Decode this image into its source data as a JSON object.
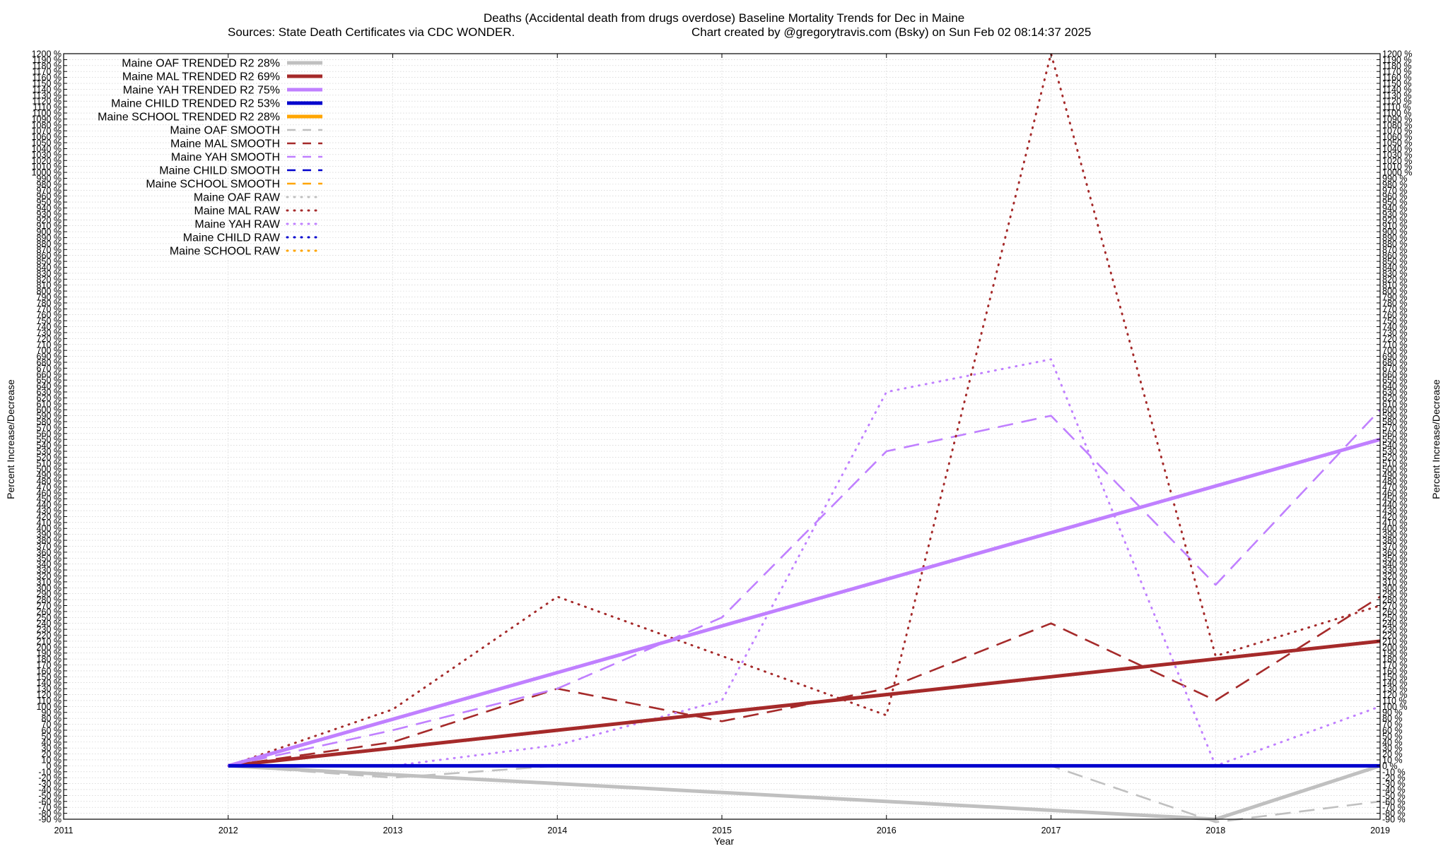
{
  "chart_data": {
    "type": "line",
    "title": "Deaths (Accidental death from drugs overdose)  Baseline Mortality Trends for Dec in Maine",
    "subtitle_left": "Sources: State Death Certificates via CDC WONDER.",
    "subtitle_right": "Chart created by @gregorytravis.com (Bsky) on Sun Feb 02 08:14:37 2025",
    "xlabel": "Year",
    "ylabel_left": "Percent Increase/Decrease",
    "ylabel_right": "Percent Increase/Decrease",
    "xlim": [
      2011,
      2019
    ],
    "ylim": [
      -90,
      1200
    ],
    "x_ticks": [
      2011,
      2012,
      2013,
      2014,
      2015,
      2016,
      2017,
      2018,
      2019
    ],
    "y_tick_step": 10,
    "y_tick_suffix": " %",
    "grid": true,
    "legend_position": "top-left",
    "colors": {
      "oaf": "#c0c0c0",
      "mal": "#a52a2a",
      "yah": "#c080ff",
      "child": "#0000cd",
      "school": "#ffa500",
      "grid": "#c8c8c8"
    },
    "series": [
      {
        "name": "Maine OAF TRENDED R2  28%",
        "group": "oaf",
        "style": "trended",
        "x": [
          2012,
          2018,
          2019
        ],
        "y": [
          0,
          -90,
          0
        ]
      },
      {
        "name": "Maine MAL TRENDED R2  69%",
        "group": "mal",
        "style": "trended",
        "x": [
          2012,
          2019
        ],
        "y": [
          0,
          210
        ]
      },
      {
        "name": "Maine YAH TRENDED R2  75%",
        "group": "yah",
        "style": "trended",
        "x": [
          2012,
          2019
        ],
        "y": [
          0,
          550
        ]
      },
      {
        "name": "Maine CHILD TRENDED R2  53%",
        "group": "child",
        "style": "trended",
        "x": [
          2012,
          2019
        ],
        "y": [
          0,
          0
        ]
      },
      {
        "name": "Maine SCHOOL TRENDED R2  28%",
        "group": "school",
        "style": "trended",
        "x": [],
        "y": []
      },
      {
        "name": "Maine OAF SMOOTH",
        "group": "oaf",
        "style": "smooth",
        "x": [
          2012,
          2013,
          2014,
          2015,
          2016,
          2017,
          2018,
          2019
        ],
        "y": [
          0,
          -20,
          0,
          0,
          0,
          0,
          -95,
          -60
        ]
      },
      {
        "name": "Maine MAL SMOOTH",
        "group": "mal",
        "style": "smooth",
        "x": [
          2012,
          2013,
          2014,
          2015,
          2016,
          2017,
          2018,
          2019
        ],
        "y": [
          0,
          40,
          130,
          75,
          130,
          240,
          110,
          285
        ]
      },
      {
        "name": "Maine YAH SMOOTH",
        "group": "yah",
        "style": "smooth",
        "x": [
          2012,
          2013,
          2014,
          2015,
          2016,
          2017,
          2018,
          2019
        ],
        "y": [
          0,
          60,
          130,
          250,
          530,
          590,
          305,
          600
        ]
      },
      {
        "name": "Maine CHILD SMOOTH",
        "group": "child",
        "style": "smooth",
        "x": [
          2012,
          2019
        ],
        "y": [
          0,
          0
        ]
      },
      {
        "name": "Maine SCHOOL SMOOTH",
        "group": "school",
        "style": "smooth",
        "x": [],
        "y": []
      },
      {
        "name": "Maine OAF RAW",
        "group": "oaf",
        "style": "raw",
        "x": [],
        "y": []
      },
      {
        "name": "Maine MAL RAW",
        "group": "mal",
        "style": "raw",
        "x": [
          2012,
          2013,
          2014,
          2015,
          2016,
          2017,
          2018,
          2019
        ],
        "y": [
          0,
          95,
          285,
          185,
          85,
          1200,
          185,
          270
        ]
      },
      {
        "name": "Maine YAH RAW",
        "group": "yah",
        "style": "raw",
        "x": [
          2012,
          2013,
          2014,
          2015,
          2016,
          2017,
          2018,
          2019
        ],
        "y": [
          0,
          0,
          35,
          110,
          630,
          685,
          0,
          100
        ]
      },
      {
        "name": "Maine CHILD RAW",
        "group": "child",
        "style": "raw",
        "x": [],
        "y": []
      },
      {
        "name": "Maine SCHOOL RAW",
        "group": "school",
        "style": "raw",
        "x": [],
        "y": []
      }
    ]
  }
}
